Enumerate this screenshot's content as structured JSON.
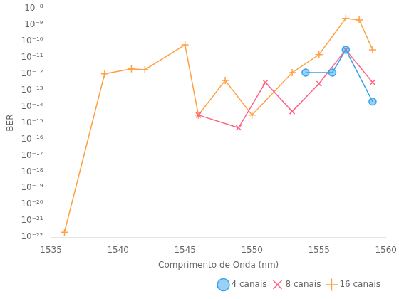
{
  "chart_data": {
    "type": "line",
    "xlabel": "Comprimento de Onda (nm)",
    "ylabel": "BER",
    "log": "y",
    "grid": false,
    "legend": "lower right",
    "xlim": [
      1535,
      1560
    ],
    "xticks": [
      1535,
      1540,
      1545,
      1550,
      1555,
      1560
    ],
    "ylim": [
      1e-22,
      1e-08
    ],
    "yticks": [
      {
        "value": 1e-22,
        "label": "10⁻²²"
      },
      {
        "value": 1e-21,
        "label": "10⁻²¹"
      },
      {
        "value": 1e-20,
        "label": "10⁻²⁰"
      },
      {
        "value": 1e-19,
        "label": "10⁻¹⁹"
      },
      {
        "value": 1e-18,
        "label": "10⁻¹⁸"
      },
      {
        "value": 1e-17,
        "label": "10⁻¹⁷"
      },
      {
        "value": 1e-16,
        "label": "10⁻¹⁶"
      },
      {
        "value": 1e-15,
        "label": "10⁻¹⁵"
      },
      {
        "value": 1e-14,
        "label": "10⁻¹⁴"
      },
      {
        "value": 1e-13,
        "label": "10⁻¹³"
      },
      {
        "value": 1e-12,
        "label": "10⁻¹²"
      },
      {
        "value": 1e-11,
        "label": "10⁻¹¹"
      },
      {
        "value": 1e-10,
        "label": "10⁻¹⁰"
      },
      {
        "value": 1e-09,
        "label": "10⁻⁹"
      },
      {
        "value": 1e-08,
        "label": "10⁻⁸"
      }
    ],
    "series": [
      {
        "name": "4 canais",
        "marker": "circle",
        "x": [
          1554,
          1556,
          1557,
          1559
        ],
        "values": [
          1.2e-12,
          1.2e-12,
          3e-11,
          2e-14
        ]
      },
      {
        "name": "8 canais",
        "marker": "x",
        "x": [
          1546,
          1549,
          1551,
          1553,
          1555,
          1557,
          1559
        ],
        "values": [
          3e-15,
          5e-16,
          3e-13,
          5e-15,
          2.5e-13,
          3e-11,
          3e-13
        ]
      },
      {
        "name": "16 canais",
        "marker": "plus",
        "x": [
          1536,
          1539,
          1541,
          1542,
          1545,
          1546,
          1548,
          1550,
          1553,
          1555,
          1557,
          1558,
          1559
        ],
        "values": [
          2e-22,
          1e-12,
          2e-12,
          1.8e-12,
          6e-11,
          3e-15,
          4e-13,
          3e-15,
          1.2e-12,
          1.5e-11,
          2.5e-09,
          2e-09,
          3e-11
        ]
      }
    ]
  }
}
